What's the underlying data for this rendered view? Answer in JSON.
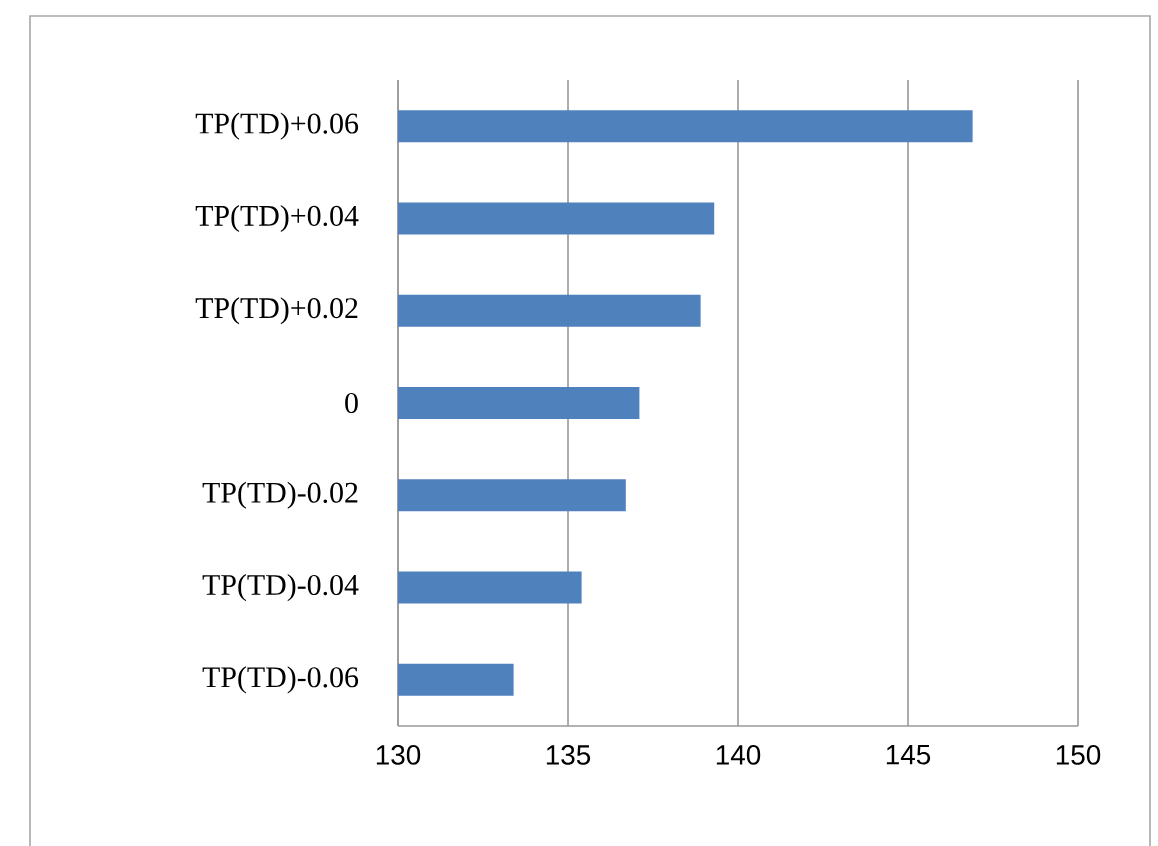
{
  "chart_data": {
    "type": "bar",
    "orientation": "horizontal",
    "categories": [
      "TP(TD)+0.06",
      "TP(TD)+0.04",
      "TP(TD)+0.02",
      "0",
      "TP(TD)-0.02",
      "TP(TD)-0.04",
      "TP(TD)-0.06"
    ],
    "values": [
      146.9,
      139.3,
      138.9,
      137.1,
      136.7,
      135.4,
      133.4
    ],
    "color": "#4f81bd",
    "xlim": [
      130,
      150
    ],
    "xticks": [
      130,
      135,
      140,
      145,
      150
    ],
    "grid": "x"
  }
}
